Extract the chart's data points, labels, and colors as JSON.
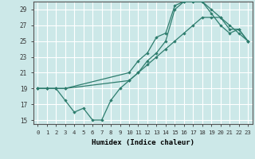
{
  "xlabel": "Humidex (Indice chaleur)",
  "background_color": "#cce8e8",
  "grid_color": "#ffffff",
  "line_color": "#2e7d6e",
  "xlim": [
    -0.5,
    23.5
  ],
  "ylim": [
    14.5,
    30.0
  ],
  "xticks": [
    0,
    1,
    2,
    3,
    4,
    5,
    6,
    7,
    8,
    9,
    10,
    11,
    12,
    13,
    14,
    15,
    16,
    17,
    18,
    19,
    20,
    21,
    22,
    23
  ],
  "yticks": [
    15,
    17,
    19,
    21,
    23,
    25,
    27,
    29
  ],
  "series": [
    {
      "x": [
        0,
        1,
        2,
        3,
        10,
        11,
        12,
        13,
        14,
        15,
        16,
        17,
        18,
        19,
        20,
        21,
        22,
        23
      ],
      "y": [
        19,
        19,
        19,
        19,
        20,
        21,
        22,
        23,
        24,
        25,
        26,
        27,
        28,
        28,
        28,
        27,
        26,
        25
      ]
    },
    {
      "x": [
        0,
        1,
        2,
        3,
        10,
        11,
        12,
        13,
        14,
        15,
        16,
        17,
        18,
        19,
        20,
        21,
        22,
        23
      ],
      "y": [
        19,
        19,
        19,
        19,
        21,
        22.5,
        23.5,
        25.5,
        26,
        29.5,
        30,
        30,
        30,
        29,
        28,
        26.5,
        26.5,
        25
      ]
    },
    {
      "x": [
        0,
        1,
        2,
        3,
        4,
        5,
        6,
        7,
        8,
        9,
        10,
        11,
        12,
        13,
        14,
        15,
        16,
        17,
        18,
        19,
        20,
        21,
        22,
        23
      ],
      "y": [
        19,
        19,
        19,
        17.5,
        16,
        16.5,
        15,
        15,
        17.5,
        19,
        20,
        21,
        22.5,
        23.5,
        25,
        29,
        30,
        30,
        30,
        28.5,
        27,
        26,
        26.5,
        25
      ]
    }
  ]
}
